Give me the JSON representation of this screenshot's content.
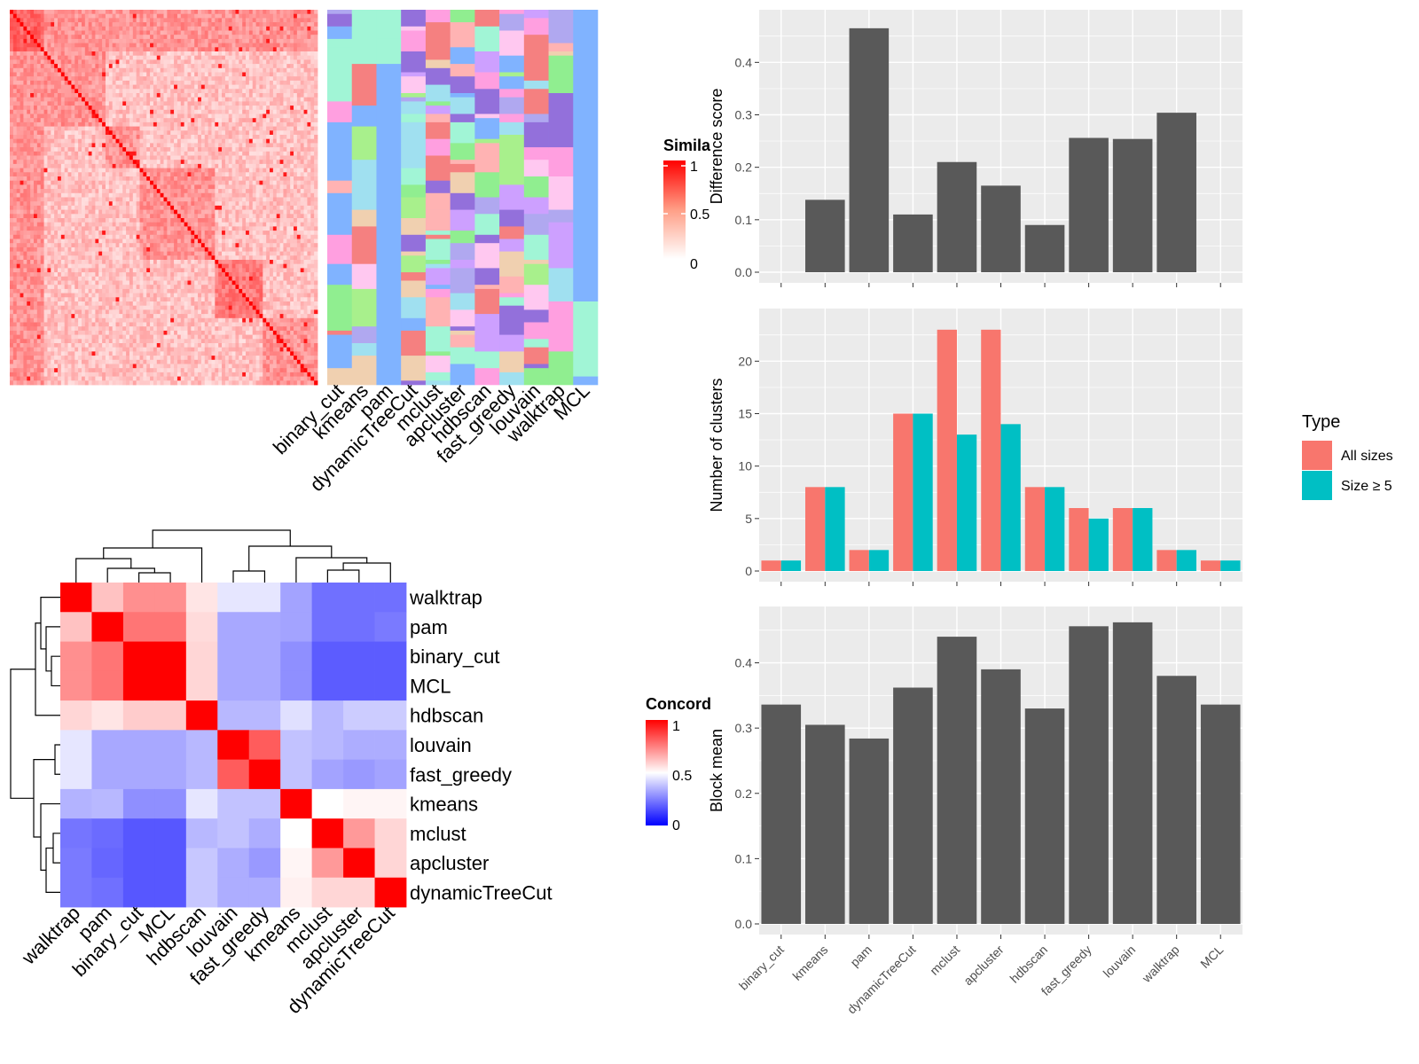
{
  "methods": [
    "binary_cut",
    "kmeans",
    "pam",
    "dynamicTreeCut",
    "mclust",
    "apcluster",
    "hdbscan",
    "fast_greedy",
    "louvain",
    "walktrap",
    "MCL"
  ],
  "concordance_order": [
    "walktrap",
    "pam",
    "binary_cut",
    "MCL",
    "hdbscan",
    "louvain",
    "fast_greedy",
    "kmeans",
    "mclust",
    "apcluster",
    "dynamicTreeCut"
  ],
  "legends": {
    "similarity": {
      "title": "Simila",
      "ticks": [
        "1",
        "0.5",
        "0"
      ]
    },
    "concordance": {
      "title": "Concord",
      "ticks": [
        "1",
        "0.5",
        "0"
      ]
    },
    "type": {
      "title": "Type",
      "items": [
        "All sizes",
        "Size ≥ 5"
      ],
      "colors": [
        "#F8766D",
        "#00BFC4"
      ]
    }
  },
  "colors": {
    "bar": "#595959",
    "panel": "#EBEBEB",
    "assignment_background": "#80B3FF",
    "heat_high": "#FF0000",
    "heat_low": "#0000FF"
  },
  "chart_data": [
    {
      "type": "heatmap",
      "name": "similarity_matrix",
      "legend_title": "Simila",
      "range": [
        0,
        1
      ],
      "note_matrix_size": 180
    },
    {
      "type": "heatmap",
      "name": "cluster_assignments",
      "categories": [
        "binary_cut",
        "kmeans",
        "pam",
        "dynamicTreeCut",
        "mclust",
        "apcluster",
        "hdbscan",
        "fast_greedy",
        "louvain",
        "walktrap",
        "MCL"
      ]
    },
    {
      "type": "heatmap",
      "name": "concordance",
      "legend_title": "Concord",
      "range": [
        0,
        1
      ],
      "rows": [
        "walktrap",
        "pam",
        "binary_cut",
        "MCL",
        "hdbscan",
        "louvain",
        "fast_greedy",
        "kmeans",
        "mclust",
        "apcluster",
        "dynamicTreeCut"
      ],
      "values": [
        [
          1.0,
          0.62,
          0.72,
          0.72,
          0.55,
          0.45,
          0.45,
          0.32,
          0.22,
          0.22,
          0.22
        ],
        [
          0.62,
          1.0,
          0.77,
          0.77,
          0.57,
          0.33,
          0.33,
          0.32,
          0.22,
          0.22,
          0.24
        ],
        [
          0.72,
          0.77,
          1.0,
          1.0,
          0.58,
          0.33,
          0.33,
          0.28,
          0.18,
          0.18,
          0.18
        ],
        [
          0.72,
          0.77,
          1.0,
          1.0,
          0.58,
          0.33,
          0.33,
          0.28,
          0.18,
          0.18,
          0.18
        ],
        [
          0.58,
          0.55,
          0.6,
          0.6,
          1.0,
          0.36,
          0.36,
          0.44,
          0.36,
          0.4,
          0.4
        ],
        [
          0.45,
          0.33,
          0.33,
          0.33,
          0.36,
          1.0,
          0.82,
          0.38,
          0.36,
          0.34,
          0.34
        ],
        [
          0.45,
          0.33,
          0.33,
          0.33,
          0.36,
          0.82,
          1.0,
          0.38,
          0.32,
          0.3,
          0.32
        ],
        [
          0.35,
          0.36,
          0.28,
          0.28,
          0.45,
          0.38,
          0.38,
          1.0,
          0.5,
          0.52,
          0.52
        ],
        [
          0.23,
          0.21,
          0.17,
          0.17,
          0.36,
          0.38,
          0.34,
          0.5,
          1.0,
          0.7,
          0.58
        ],
        [
          0.24,
          0.2,
          0.17,
          0.17,
          0.39,
          0.34,
          0.3,
          0.52,
          0.7,
          1.0,
          0.58
        ],
        [
          0.24,
          0.22,
          0.17,
          0.17,
          0.39,
          0.34,
          0.34,
          0.53,
          0.58,
          0.58,
          1.0
        ]
      ]
    },
    {
      "type": "bar",
      "name": "difference_score",
      "categories": [
        "binary_cut",
        "kmeans",
        "pam",
        "dynamicTreeCut",
        "mclust",
        "apcluster",
        "hdbscan",
        "fast_greedy",
        "louvain",
        "walktrap",
        "MCL"
      ],
      "values": [
        null,
        0.138,
        0.465,
        0.11,
        0.21,
        0.165,
        0.09,
        0.256,
        0.254,
        0.304,
        null
      ],
      "ylabel": "Difference score",
      "ylim": [
        0,
        0.48
      ],
      "yticks": [
        "0.0",
        "0.1",
        "0.2",
        "0.3",
        "0.4"
      ],
      "grid": true
    },
    {
      "type": "bar",
      "name": "number_of_clusters",
      "categories": [
        "binary_cut",
        "kmeans",
        "pam",
        "dynamicTreeCut",
        "mclust",
        "apcluster",
        "hdbscan",
        "fast_greedy",
        "louvain",
        "walktrap",
        "MCL"
      ],
      "series": [
        {
          "name": "All sizes",
          "values": [
            1,
            8,
            2,
            15,
            23,
            23,
            8,
            6,
            6,
            2,
            1
          ]
        },
        {
          "name": "Size ≥ 5",
          "values": [
            1,
            8,
            2,
            15,
            13,
            14,
            8,
            5,
            6,
            2,
            1
          ]
        }
      ],
      "ylabel": "Number of clusters",
      "ylim": [
        0,
        24
      ],
      "yticks": [
        "0",
        "5",
        "10",
        "15",
        "20"
      ],
      "legend": "right",
      "grid": true
    },
    {
      "type": "bar",
      "name": "block_mean",
      "categories": [
        "binary_cut",
        "kmeans",
        "pam",
        "dynamicTreeCut",
        "mclust",
        "apcluster",
        "hdbscan",
        "fast_greedy",
        "louvain",
        "walktrap",
        "MCL"
      ],
      "values": [
        0.336,
        0.305,
        0.284,
        0.362,
        0.44,
        0.39,
        0.33,
        0.456,
        0.462,
        0.38,
        0.336
      ],
      "ylabel": "Block mean",
      "ylim": [
        0,
        0.47
      ],
      "yticks": [
        "0.0",
        "0.1",
        "0.2",
        "0.3",
        "0.4"
      ],
      "grid": true
    }
  ]
}
